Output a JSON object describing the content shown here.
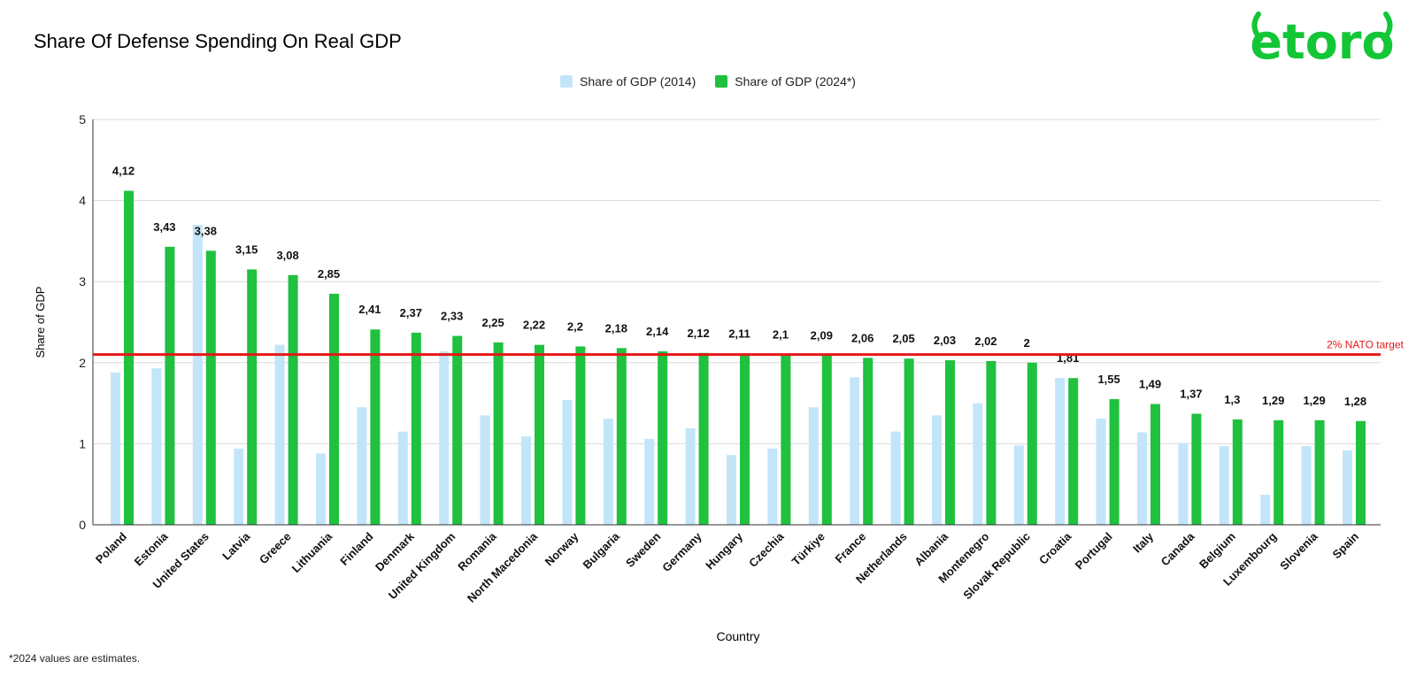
{
  "footnote": "*2024 values are estimates.",
  "logo_text": "etoro",
  "colors": {
    "series_2014": "#c3e5f9",
    "series_2024": "#1fc13f",
    "target_line": "#e61717",
    "target_label": "#e61717",
    "gridline": "#d9d9d9",
    "logo": "#13c636"
  },
  "chart_data": {
    "type": "bar",
    "title": "Share Of Defense Spending On Real GDP",
    "xlabel": "Country",
    "ylabel": "Share of GDP",
    "ylim": [
      0,
      5
    ],
    "yticks": [
      0,
      1,
      2,
      3,
      4,
      5
    ],
    "grid": true,
    "legend_position": "top-center",
    "categories": [
      "Poland",
      "Estonia",
      "United States",
      "Latvia",
      "Greece",
      "Lithuania",
      "Finland",
      "Denmark",
      "United Kingdom",
      "Romania",
      "North Macedonia",
      "Norway",
      "Bulgaria",
      "Sweden",
      "Germany",
      "Hungary",
      "Czechia",
      "Türkiye",
      "France",
      "Netherlands",
      "Albania",
      "Montenegro",
      "Slovak Republic",
      "Croatia",
      "Portugal",
      "Italy",
      "Canada",
      "Belgium",
      "Luxembourg",
      "Slovenia",
      "Spain"
    ],
    "series": [
      {
        "name": "Share of GDP (2014)",
        "values": [
          1.88,
          1.93,
          3.7,
          0.94,
          2.22,
          0.88,
          1.45,
          1.15,
          2.14,
          1.35,
          1.09,
          1.54,
          1.31,
          1.06,
          1.19,
          0.86,
          0.94,
          1.45,
          1.82,
          1.15,
          1.35,
          1.5,
          0.98,
          1.81,
          1.31,
          1.14,
          1.01,
          0.97,
          0.37,
          0.97,
          0.92
        ]
      },
      {
        "name": "Share of GDP (2024*)",
        "values": [
          4.12,
          3.43,
          3.38,
          3.15,
          3.08,
          2.85,
          2.41,
          2.37,
          2.33,
          2.25,
          2.22,
          2.2,
          2.18,
          2.14,
          2.12,
          2.11,
          2.1,
          2.09,
          2.06,
          2.05,
          2.03,
          2.02,
          2.0,
          1.81,
          1.55,
          1.49,
          1.37,
          1.3,
          1.29,
          1.29,
          1.28
        ],
        "labels": [
          "4,12",
          "3,43",
          "3,38",
          "3,15",
          "3,08",
          "2,85",
          "2,41",
          "2,37",
          "2,33",
          "2,25",
          "2,22",
          "2,2",
          "2,18",
          "2,14",
          "2,12",
          "2,11",
          "2,1",
          "2,09",
          "2,06",
          "2,05",
          "2,03",
          "2,02",
          "2",
          "1,81",
          "1,55",
          "1,49",
          "1,37",
          "1,3",
          "1,29",
          "1,29",
          "1,28"
        ]
      }
    ],
    "reference_line": {
      "value": 2.1,
      "label": "2% NATO target"
    }
  }
}
